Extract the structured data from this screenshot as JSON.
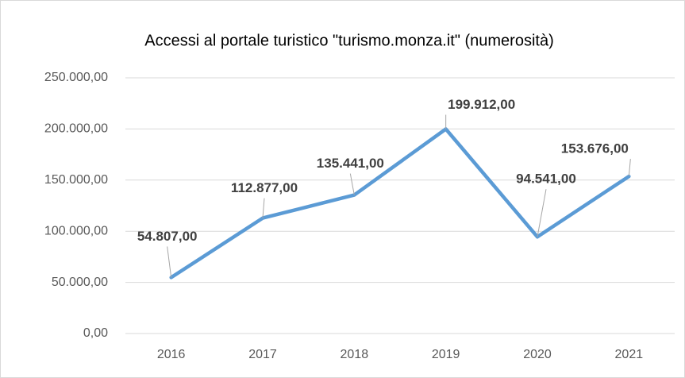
{
  "chart_data": {
    "type": "line",
    "title": "Accessi al portale turistico \"turismo.monza.it\" (numerosità)",
    "categories": [
      "2016",
      "2017",
      "2018",
      "2019",
      "2020",
      "2021"
    ],
    "series": [
      {
        "name": "Accessi",
        "color": "#5b9bd5",
        "values": [
          54807,
          112877,
          135441,
          199912,
          94541,
          153676
        ],
        "value_labels": [
          "54.807,00",
          "112.877,00",
          "135.441,00",
          "199.912,00",
          "94.541,00",
          "153.676,00"
        ]
      }
    ],
    "ylim": [
      0,
      250000
    ],
    "yticks": [
      {
        "value": 0,
        "label": "0,00"
      },
      {
        "value": 50000,
        "label": "50.000,00"
      },
      {
        "value": 100000,
        "label": "100.000,00"
      },
      {
        "value": 150000,
        "label": "150.000,00"
      },
      {
        "value": 200000,
        "label": "200.000,00"
      },
      {
        "value": 250000,
        "label": "250.000,00"
      }
    ],
    "grid": true
  }
}
